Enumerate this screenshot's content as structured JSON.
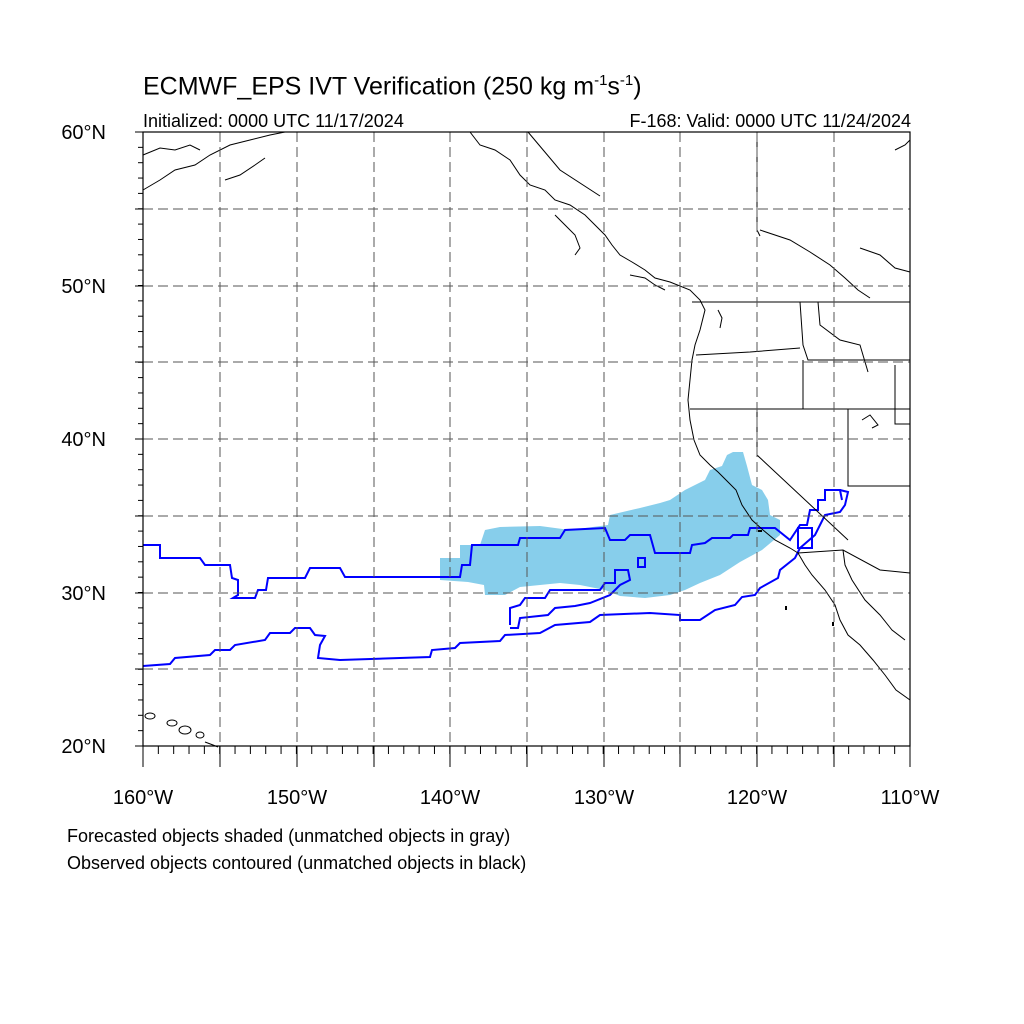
{
  "title": {
    "prefix": "ECMWF_EPS IVT Verification (250 kg m",
    "exp1": "-1",
    "mid": "s",
    "exp2": "-1",
    "suffix": ")"
  },
  "initialized": "Initialized: 0000 UTC 11/17/2024",
  "valid": "F-168: Valid: 0000 UTC 11/24/2024",
  "lat_labels": [
    "60°N",
    "50°N",
    "40°N",
    "30°N",
    "20°N"
  ],
  "lon_labels": [
    "160°W",
    "150°W",
    "140°W",
    "130°W",
    "120°W",
    "110°W"
  ],
  "caption": {
    "line1": "Forecasted objects shaded (unmatched objects in gray)",
    "line2": "Observed objects contoured (unmatched objects in black)"
  },
  "colors": {
    "forecast_fill": "#87ceeb",
    "observed_contour": "#0000ff",
    "coastline": "#000000",
    "grid": "#555555"
  },
  "map_extent": {
    "lon": [
      -160,
      -110
    ],
    "lat": [
      20,
      60
    ]
  }
}
